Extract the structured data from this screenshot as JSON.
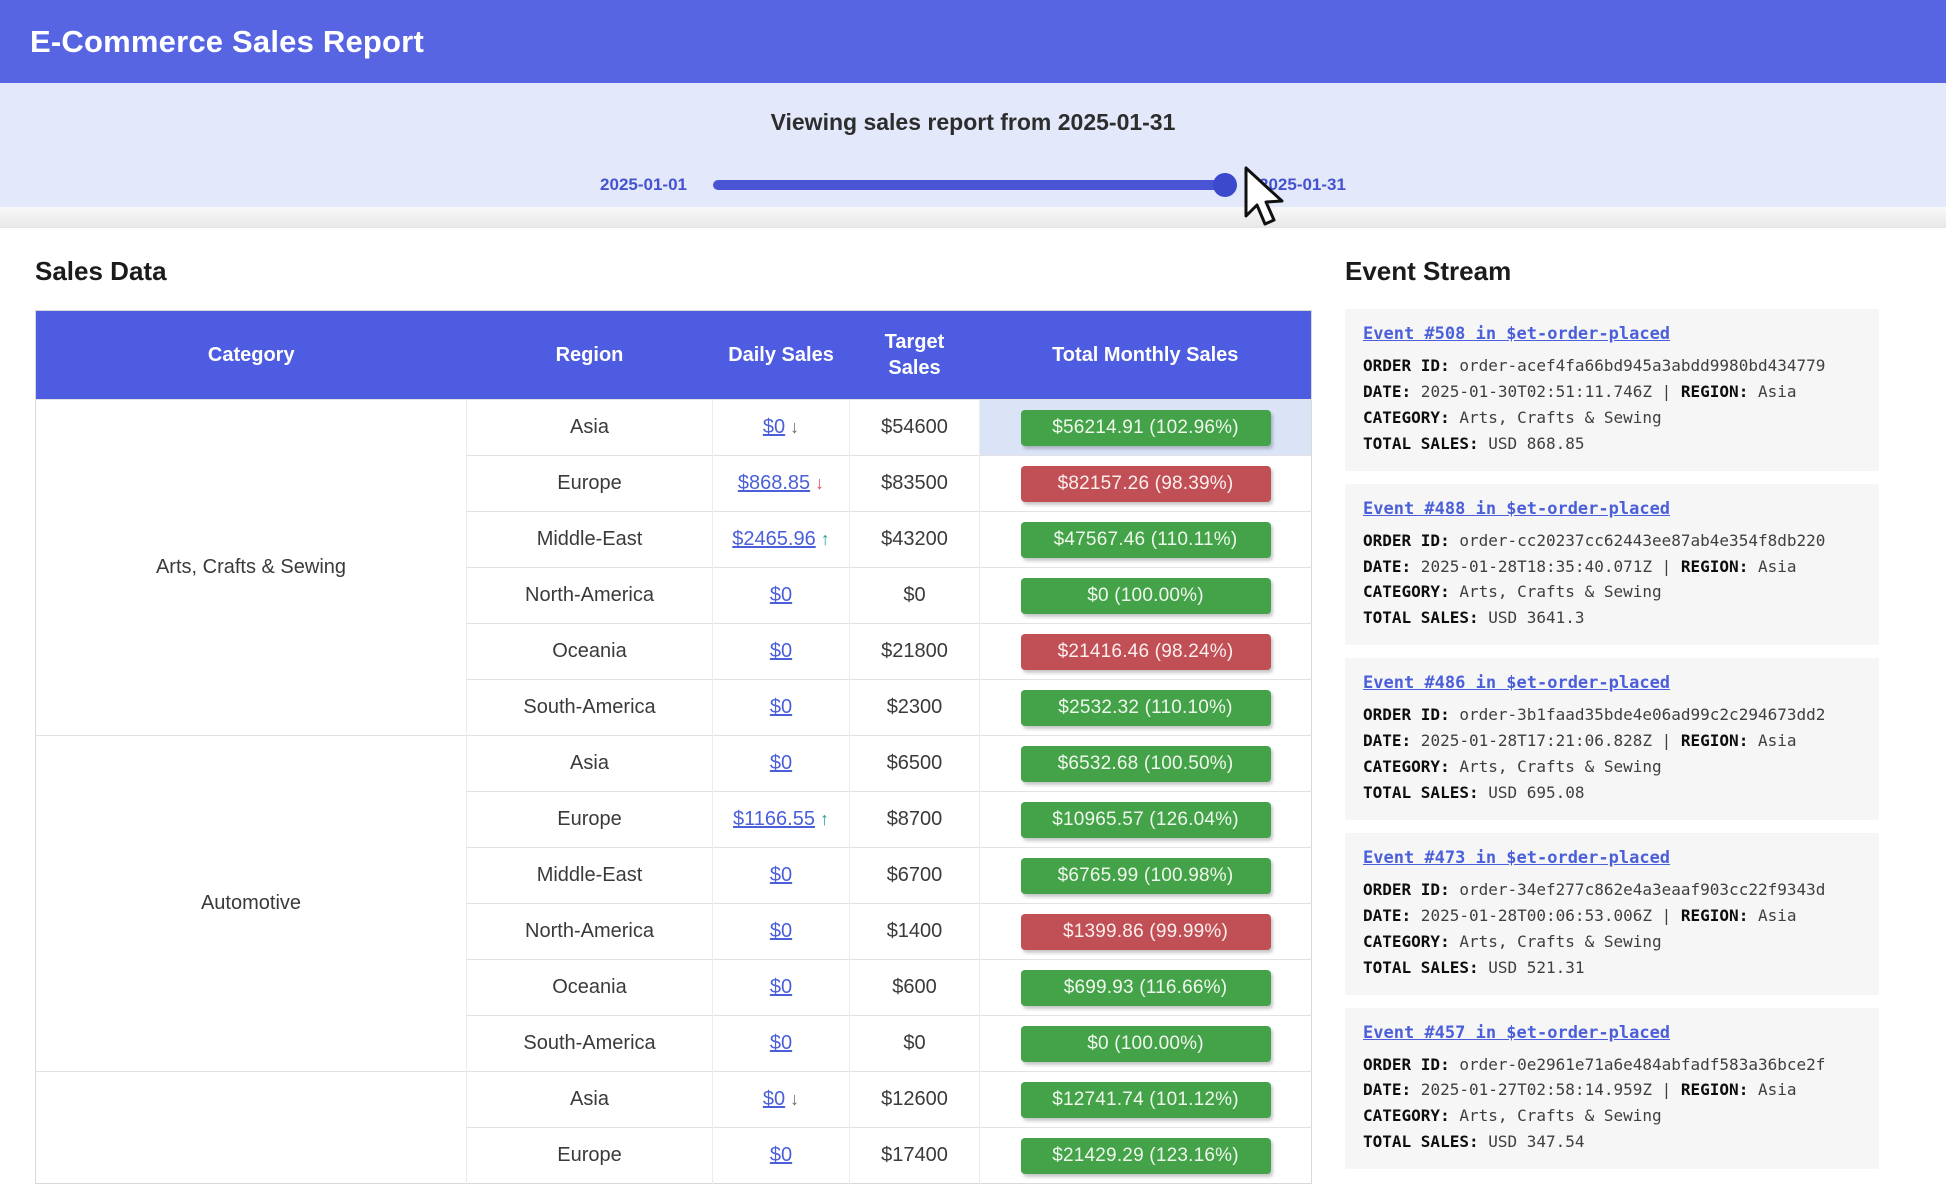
{
  "header": {
    "title": "E-Commerce Sales Report"
  },
  "slider": {
    "title": "Viewing sales report from 2025-01-31",
    "min_label": "2025-01-01",
    "max_label": "2025-01-31",
    "value": "2025-01-31",
    "position_pct": 100
  },
  "colors": {
    "header_bg": "#5765e3",
    "panel_bg": "#e3e9fb",
    "table_header_bg": "#4d5ce0",
    "badge_green": "#44a248",
    "badge_red": "#c05055",
    "link_blue": "#4a5fd9",
    "row_highlight": "#dbe3f7",
    "arrow_up": "#2aa198",
    "arrow_down": "#d9534f"
  },
  "sales": {
    "section_title": "Sales Data",
    "columns": [
      "Category",
      "Region",
      "Daily Sales",
      "Target Sales",
      "Total Monthly Sales"
    ],
    "groups": [
      {
        "category": "Arts, Crafts & Sewing",
        "rows": [
          {
            "region": "Asia",
            "daily": "$0",
            "arrow": "↓",
            "arrow_style": "muted",
            "target": "$54600",
            "badge": "$56214.91 (102.96%)",
            "badge_color": "green",
            "highlight": true
          },
          {
            "region": "Europe",
            "daily": "$868.85",
            "arrow": "↓",
            "arrow_style": "down",
            "target": "$83500",
            "badge": "$82157.26 (98.39%)",
            "badge_color": "red",
            "highlight": false
          },
          {
            "region": "Middle-East",
            "daily": "$2465.96",
            "arrow": "↑",
            "arrow_style": "up",
            "target": "$43200",
            "badge": "$47567.46 (110.11%)",
            "badge_color": "green",
            "highlight": false
          },
          {
            "region": "North-America",
            "daily": "$0",
            "arrow": "",
            "arrow_style": "",
            "target": "$0",
            "badge": "$0 (100.00%)",
            "badge_color": "green",
            "highlight": false
          },
          {
            "region": "Oceania",
            "daily": "$0",
            "arrow": "",
            "arrow_style": "",
            "target": "$21800",
            "badge": "$21416.46 (98.24%)",
            "badge_color": "red",
            "highlight": false
          },
          {
            "region": "South-America",
            "daily": "$0",
            "arrow": "",
            "arrow_style": "",
            "target": "$2300",
            "badge": "$2532.32 (110.10%)",
            "badge_color": "green",
            "highlight": false
          }
        ]
      },
      {
        "category": "Automotive",
        "rows": [
          {
            "region": "Asia",
            "daily": "$0",
            "arrow": "",
            "arrow_style": "",
            "target": "$6500",
            "badge": "$6532.68 (100.50%)",
            "badge_color": "green",
            "highlight": false
          },
          {
            "region": "Europe",
            "daily": "$1166.55",
            "arrow": "↑",
            "arrow_style": "up",
            "target": "$8700",
            "badge": "$10965.57 (126.04%)",
            "badge_color": "green",
            "highlight": false
          },
          {
            "region": "Middle-East",
            "daily": "$0",
            "arrow": "",
            "arrow_style": "",
            "target": "$6700",
            "badge": "$6765.99 (100.98%)",
            "badge_color": "green",
            "highlight": false
          },
          {
            "region": "North-America",
            "daily": "$0",
            "arrow": "",
            "arrow_style": "",
            "target": "$1400",
            "badge": "$1399.86 (99.99%)",
            "badge_color": "red",
            "highlight": false
          },
          {
            "region": "Oceania",
            "daily": "$0",
            "arrow": "",
            "arrow_style": "",
            "target": "$600",
            "badge": "$699.93 (116.66%)",
            "badge_color": "green",
            "highlight": false
          },
          {
            "region": "South-America",
            "daily": "$0",
            "arrow": "",
            "arrow_style": "",
            "target": "$0",
            "badge": "$0 (100.00%)",
            "badge_color": "green",
            "highlight": false
          }
        ]
      },
      {
        "category": "",
        "rows": [
          {
            "region": "Asia",
            "daily": "$0",
            "arrow": "↓",
            "arrow_style": "muted",
            "target": "$12600",
            "badge": "$12741.74 (101.12%)",
            "badge_color": "green",
            "highlight": false
          },
          {
            "region": "Europe",
            "daily": "$0",
            "arrow": "",
            "arrow_style": "",
            "target": "$17400",
            "badge": "$21429.29 (123.16%)",
            "badge_color": "green",
            "highlight": false
          }
        ]
      }
    ]
  },
  "events": {
    "section_title": "Event Stream",
    "labels": {
      "order_id": "ORDER ID:",
      "date": "DATE:",
      "region": "REGION:",
      "category": "CATEGORY:",
      "total_sales": "TOTAL SALES:",
      "separator": "|"
    },
    "items": [
      {
        "title": "Event #508 in $et-order-placed",
        "order_id": "order-acef4fa66bd945a3abdd9980bd434779",
        "date": "2025-01-30T02:51:11.746Z",
        "region": "Asia",
        "category": "Arts, Crafts & Sewing",
        "total_sales": "USD 868.85"
      },
      {
        "title": "Event #488 in $et-order-placed",
        "order_id": "order-cc20237cc62443ee87ab4e354f8db220",
        "date": "2025-01-28T18:35:40.071Z",
        "region": "Asia",
        "category": "Arts, Crafts & Sewing",
        "total_sales": "USD 3641.3"
      },
      {
        "title": "Event #486 in $et-order-placed",
        "order_id": "order-3b1faad35bde4e06ad99c2c294673dd2",
        "date": "2025-01-28T17:21:06.828Z",
        "region": "Asia",
        "category": "Arts, Crafts & Sewing",
        "total_sales": "USD 695.08"
      },
      {
        "title": "Event #473 in $et-order-placed",
        "order_id": "order-34ef277c862e4a3eaaf903cc22f9343d",
        "date": "2025-01-28T00:06:53.006Z",
        "region": "Asia",
        "category": "Arts, Crafts & Sewing",
        "total_sales": "USD 521.31"
      },
      {
        "title": "Event #457 in $et-order-placed",
        "order_id": "order-0e2961e71a6e484abfadf583a36bce2f",
        "date": "2025-01-27T02:58:14.959Z",
        "region": "Asia",
        "category": "Arts, Crafts & Sewing",
        "total_sales": "USD 347.54"
      }
    ]
  }
}
